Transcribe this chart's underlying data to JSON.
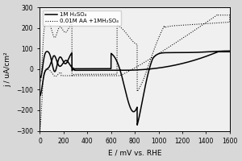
{
  "title": "",
  "xlabel": "E / mV vs. RHE",
  "ylabel": "j / uA/cm²",
  "xlim": [
    0,
    1600
  ],
  "ylim": [
    -300,
    300
  ],
  "xticks": [
    0,
    200,
    400,
    600,
    800,
    1000,
    1200,
    1400,
    1600
  ],
  "yticks": [
    -300,
    -200,
    -100,
    0,
    100,
    200,
    300
  ],
  "legend": [
    "1M H₂SO₄",
    "0.01M AA +1MH₂SO₄"
  ],
  "line1_color": "black",
  "line2_color": "black",
  "background_color": "#f0f0f0",
  "fig_color": "#d8d8d8"
}
